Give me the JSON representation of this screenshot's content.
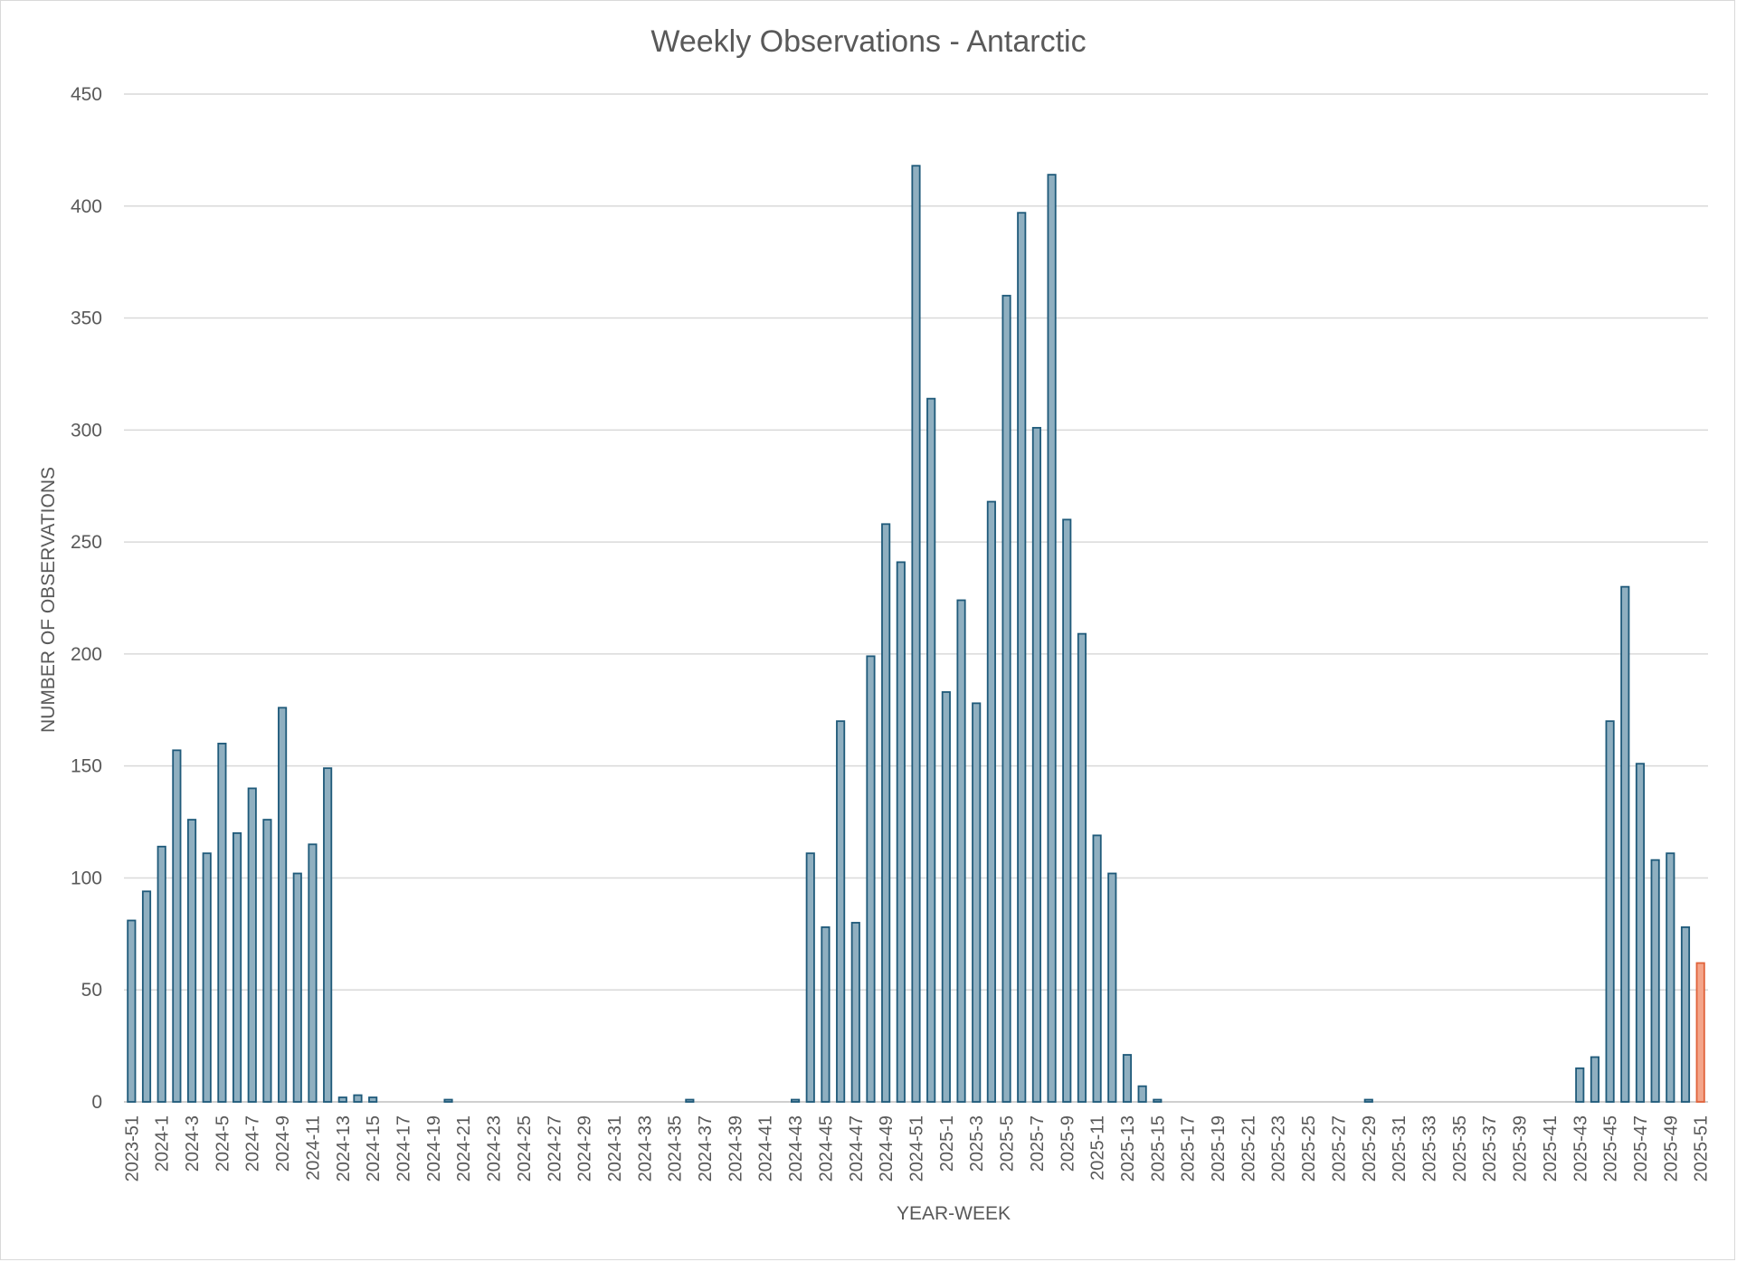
{
  "chart_data": {
    "type": "bar",
    "title": "Weekly Observations - Antarctic",
    "xlabel": "YEAR-WEEK",
    "ylabel": "NUMBER OF OBSERVATIONS",
    "ylim": [
      0,
      450
    ],
    "yticks": [
      "0",
      "50",
      "100",
      "150",
      "200",
      "250",
      "300",
      "350",
      "400",
      "450"
    ],
    "grid": true,
    "colors": {
      "bar": "#8fafc0",
      "bar_edge": "#1f5a7a",
      "highlight": "#f4a58a",
      "highlight_edge": "#e0623a"
    },
    "highlight_last": true,
    "categories": [
      "2023-51",
      "2023-52",
      "2024-1",
      "2024-2",
      "2024-3",
      "2024-4",
      "2024-5",
      "2024-6",
      "2024-7",
      "2024-8",
      "2024-9",
      "2024-10",
      "2024-11",
      "2024-12",
      "2024-13",
      "2024-14",
      "2024-15",
      "2024-16",
      "2024-17",
      "2024-18",
      "2024-19",
      "2024-20",
      "2024-21",
      "2024-22",
      "2024-23",
      "2024-24",
      "2024-25",
      "2024-26",
      "2024-27",
      "2024-28",
      "2024-29",
      "2024-30",
      "2024-31",
      "2024-32",
      "2024-33",
      "2024-34",
      "2024-35",
      "2024-36",
      "2024-37",
      "2024-38",
      "2024-39",
      "2024-40",
      "2024-41",
      "2024-42",
      "2024-43",
      "2024-44",
      "2024-45",
      "2024-46",
      "2024-47",
      "2024-48",
      "2024-49",
      "2024-50",
      "2024-51",
      "2024-52",
      "2025-1",
      "2025-2",
      "2025-3",
      "2025-4",
      "2025-5",
      "2025-6",
      "2025-7",
      "2025-8",
      "2025-9",
      "2025-10",
      "2025-11",
      "2025-12",
      "2025-13",
      "2025-14",
      "2025-15",
      "2025-16",
      "2025-17",
      "2025-18",
      "2025-19",
      "2025-20",
      "2025-21",
      "2025-22",
      "2025-23",
      "2025-24",
      "2025-25",
      "2025-26",
      "2025-27",
      "2025-28",
      "2025-29",
      "2025-30",
      "2025-31",
      "2025-32",
      "2025-33",
      "2025-34",
      "2025-35",
      "2025-36",
      "2025-37",
      "2025-38",
      "2025-39",
      "2025-40",
      "2025-41",
      "2025-42",
      "2025-43",
      "2025-44",
      "2025-45",
      "2025-46",
      "2025-47",
      "2025-48",
      "2025-49",
      "2025-50",
      "2025-51"
    ],
    "values": [
      81,
      94,
      114,
      157,
      126,
      111,
      160,
      120,
      140,
      126,
      176,
      102,
      115,
      149,
      2,
      3,
      2,
      0,
      0,
      0,
      0,
      1,
      0,
      0,
      0,
      0,
      0,
      0,
      0,
      0,
      0,
      0,
      0,
      0,
      0,
      0,
      0,
      1,
      0,
      0,
      0,
      0,
      0,
      0,
      1,
      111,
      78,
      170,
      80,
      199,
      258,
      241,
      418,
      314,
      183,
      224,
      178,
      268,
      360,
      397,
      301,
      414,
      260,
      209,
      119,
      102,
      21,
      7,
      1,
      0,
      0,
      0,
      0,
      0,
      0,
      0,
      0,
      0,
      0,
      0,
      0,
      0,
      1,
      0,
      0,
      0,
      0,
      0,
      0,
      0,
      0,
      0,
      0,
      0,
      0,
      0,
      15,
      20,
      170,
      230,
      151,
      108,
      111,
      78,
      62
    ],
    "xtick_labels": [
      "2023-51",
      "2024-1",
      "2024-3",
      "2024-5",
      "2024-7",
      "2024-9",
      "2024-11",
      "2024-13",
      "2024-15",
      "2024-17",
      "2024-19",
      "2024-21",
      "2024-23",
      "2024-25",
      "2024-27",
      "2024-29",
      "2024-31",
      "2024-33",
      "2024-35",
      "2024-37",
      "2024-39",
      "2024-41",
      "2024-43",
      "2024-45",
      "2024-47",
      "2024-49",
      "2024-51",
      "2025-1",
      "2025-3",
      "2025-5",
      "2025-7",
      "2025-9",
      "2025-11",
      "2025-13",
      "2025-15",
      "2025-17",
      "2025-19",
      "2025-21",
      "2025-23",
      "2025-25",
      "2025-27",
      "2025-29",
      "2025-31",
      "2025-33",
      "2025-35",
      "2025-37",
      "2025-39",
      "2025-41",
      "2025-43",
      "2025-45",
      "2025-47",
      "2025-49",
      "2025-51"
    ]
  }
}
